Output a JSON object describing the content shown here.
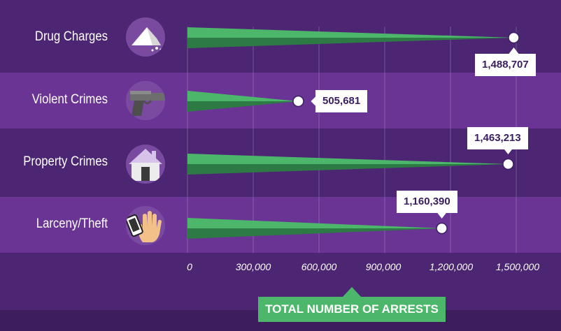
{
  "chart_data": {
    "type": "bar",
    "title": "",
    "xlabel": "TOTAL NUMBER OF ARRESTS",
    "ylabel": "",
    "xlim": [
      0,
      1500000
    ],
    "grid": true,
    "categories": [
      "Drug Charges",
      "Violent Crimes",
      "Property Crimes",
      "Larceny/Theft"
    ],
    "values": [
      1488707,
      505681,
      1463213,
      1160390
    ],
    "value_labels": [
      "1,488,707",
      "505,681",
      "1,463,213",
      "1,160,390"
    ],
    "ticks": [
      0,
      300000,
      600000,
      900000,
      1200000,
      1500000
    ],
    "tick_labels": [
      "0",
      "300,000",
      "600,000",
      "900,000",
      "1,200,000",
      "1,500,000"
    ],
    "icons": [
      "powder-pile-icon",
      "handgun-icon",
      "house-icon",
      "phone-in-hand-icon"
    ],
    "colors": {
      "bar_light": "#4cb66a",
      "bar_dark": "#2e7a44",
      "band_dark": "#4c2673",
      "band_light": "#6a3494",
      "icon_bg": "#7a4aa0",
      "label_box": "#ffffff",
      "label_text": "#3a2060",
      "axis_title_bg": "#4cb66a"
    }
  }
}
